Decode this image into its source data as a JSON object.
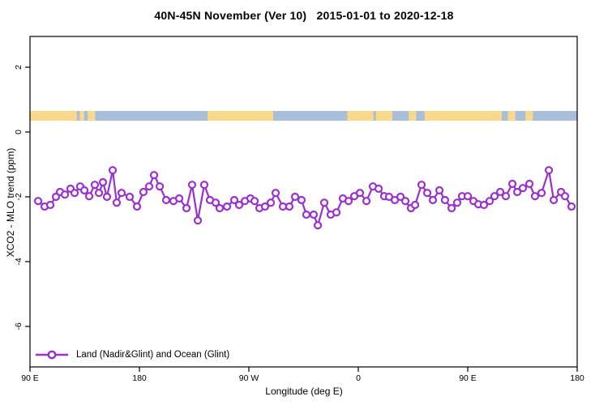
{
  "title": "40N-45N November (Ver 10)   2015-01-01 to 2020-12-18",
  "legend": {
    "label": "Land (Nadir&Glint) and Ocean (Glint)"
  },
  "colors": {
    "series": "#9932CC",
    "marker_fill": "#ffffff",
    "land": "#FAD98C",
    "ocean": "#A9BFD9",
    "axis": "#000000",
    "background": "#ffffff"
  },
  "chart_data": {
    "type": "line",
    "title": "40N-45N November (Ver 10)   2015-01-01 to 2020-12-18",
    "xlabel": "Longitude (deg E)",
    "ylabel": "XCO2 - MLO trend (ppm)",
    "xlim": [
      90,
      540
    ],
    "ylim": [
      -7.25,
      2.95
    ],
    "grid": false,
    "legend_position": "bottom-left-inside",
    "x_ticks": [
      {
        "pos": 90,
        "label": "90 E"
      },
      {
        "pos": 180,
        "label": "180"
      },
      {
        "pos": 270,
        "label": "90 W"
      },
      {
        "pos": 360,
        "label": "0"
      },
      {
        "pos": 450,
        "label": "90 E"
      },
      {
        "pos": 540,
        "label": "180"
      }
    ],
    "y_ticks": [
      {
        "pos": 2,
        "label": "2"
      },
      {
        "pos": 0,
        "label": "0"
      },
      {
        "pos": -2,
        "label": "-2"
      },
      {
        "pos": -4,
        "label": "-4"
      },
      {
        "pos": -6,
        "label": "-6"
      }
    ],
    "map_band": {
      "comment": "land/ocean strip for the 40N-45N latitude band drawn across the longitude axis",
      "value_top": 0.65,
      "value_bottom": 0.35,
      "land_segments": [
        [
          90,
          128.5
        ],
        [
          131,
          134.5
        ],
        [
          137.5,
          143.5
        ],
        [
          236,
          290
        ],
        [
          351,
          372.5
        ],
        [
          374.5,
          388
        ],
        [
          401.5,
          407.5
        ],
        [
          414.5,
          478
        ],
        [
          483,
          489
        ],
        [
          497.5,
          503.5
        ]
      ]
    },
    "series": [
      {
        "name": "Land (Nadir&Glint) and Ocean (Glint)",
        "color": "#9932CC",
        "marker": "open-circle",
        "points": [
          [
            96.7,
            -2.13
          ],
          [
            102,
            -2.3
          ],
          [
            106.7,
            -2.25
          ],
          [
            111.3,
            -2.0
          ],
          [
            114.7,
            -1.85
          ],
          [
            118.7,
            -1.93
          ],
          [
            123.3,
            -1.75
          ],
          [
            126.7,
            -1.88
          ],
          [
            131.3,
            -1.68
          ],
          [
            134.7,
            -1.8
          ],
          [
            138.7,
            -1.98
          ],
          [
            143.3,
            -1.63
          ],
          [
            146.7,
            -1.88
          ],
          [
            150,
            -1.55
          ],
          [
            153.3,
            -2.0
          ],
          [
            158,
            -1.18
          ],
          [
            161.3,
            -2.18
          ],
          [
            165.3,
            -1.88
          ],
          [
            172,
            -2.0
          ],
          [
            178,
            -2.3
          ],
          [
            183.3,
            -1.85
          ],
          [
            188,
            -1.68
          ],
          [
            192,
            -1.33
          ],
          [
            196.7,
            -1.68
          ],
          [
            202,
            -2.1
          ],
          [
            208,
            -2.13
          ],
          [
            212.7,
            -2.05
          ],
          [
            218.7,
            -2.35
          ],
          [
            223.3,
            -1.63
          ],
          [
            228,
            -2.73
          ],
          [
            233.3,
            -1.63
          ],
          [
            238,
            -2.1
          ],
          [
            242.7,
            -2.18
          ],
          [
            246,
            -2.35
          ],
          [
            252,
            -2.3
          ],
          [
            258,
            -2.1
          ],
          [
            262,
            -2.25
          ],
          [
            266.7,
            -2.13
          ],
          [
            271.3,
            -2.05
          ],
          [
            274.7,
            -2.13
          ],
          [
            278.7,
            -2.35
          ],
          [
            283.3,
            -2.3
          ],
          [
            288,
            -2.18
          ],
          [
            292,
            -1.88
          ],
          [
            298,
            -2.3
          ],
          [
            303.3,
            -2.3
          ],
          [
            308,
            -2.0
          ],
          [
            313.3,
            -2.1
          ],
          [
            317.3,
            -2.55
          ],
          [
            323.3,
            -2.55
          ],
          [
            326.7,
            -2.88
          ],
          [
            332,
            -2.18
          ],
          [
            337.3,
            -2.55
          ],
          [
            342,
            -2.48
          ],
          [
            347.3,
            -2.05
          ],
          [
            352,
            -2.13
          ],
          [
            356.7,
            -1.98
          ],
          [
            361.3,
            -1.88
          ],
          [
            366.7,
            -2.13
          ],
          [
            372,
            -1.68
          ],
          [
            376.7,
            -1.75
          ],
          [
            381.3,
            -1.98
          ],
          [
            385.3,
            -2.0
          ],
          [
            390,
            -2.1
          ],
          [
            394.7,
            -2.0
          ],
          [
            398.7,
            -2.13
          ],
          [
            403.3,
            -2.35
          ],
          [
            406.7,
            -2.25
          ],
          [
            412,
            -1.63
          ],
          [
            416.7,
            -1.88
          ],
          [
            421.3,
            -2.1
          ],
          [
            426.7,
            -1.8
          ],
          [
            431.3,
            -2.1
          ],
          [
            436.7,
            -2.35
          ],
          [
            441.3,
            -2.18
          ],
          [
            445.3,
            -1.98
          ],
          [
            450,
            -1.98
          ],
          [
            454.7,
            -2.13
          ],
          [
            458.7,
            -2.23
          ],
          [
            463.3,
            -2.25
          ],
          [
            468,
            -2.13
          ],
          [
            472,
            -1.98
          ],
          [
            476.7,
            -1.85
          ],
          [
            481.3,
            -1.98
          ],
          [
            486.7,
            -1.6
          ],
          [
            490.7,
            -1.85
          ],
          [
            495.3,
            -1.73
          ],
          [
            500.7,
            -1.6
          ],
          [
            505.3,
            -1.98
          ],
          [
            510.7,
            -1.88
          ],
          [
            516.7,
            -1.18
          ],
          [
            520.7,
            -2.1
          ],
          [
            526.7,
            -1.85
          ],
          [
            530,
            -1.98
          ],
          [
            535.3,
            -2.3
          ]
        ]
      }
    ]
  }
}
